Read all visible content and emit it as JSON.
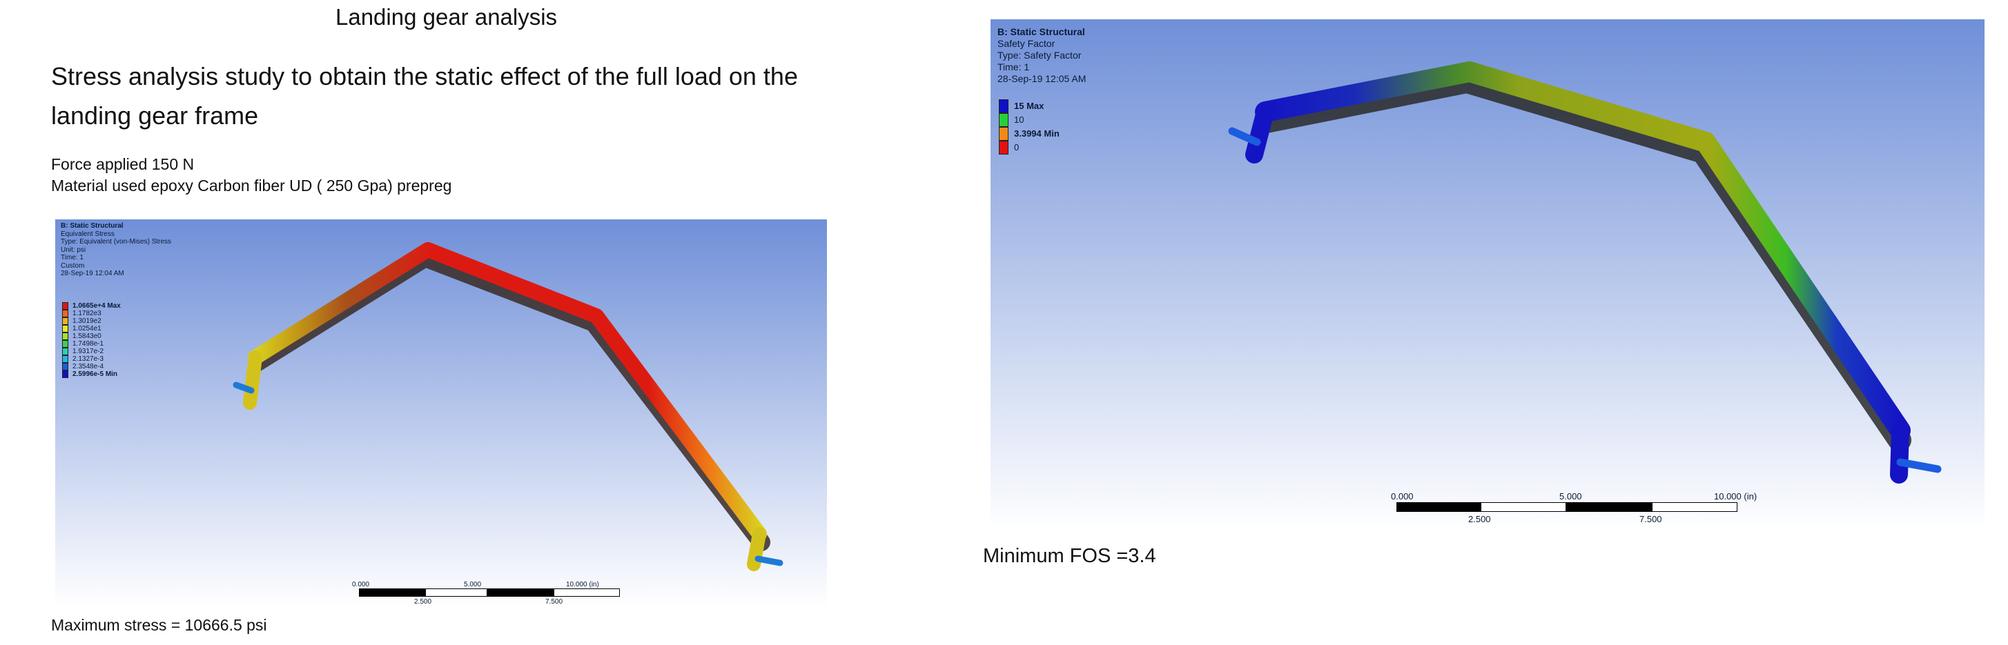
{
  "slide": {
    "title": "Landing gear analysis",
    "heading_line1": "Stress analysis study to obtain the static effect of the full load on the",
    "heading_line2": "landing gear frame",
    "force_text": "Force applied 150 N",
    "material_text": "Material used epoxy Carbon fiber UD ( 250 Gpa) prepreg",
    "max_stress_text": "Maximum stress = 10666.5 psi",
    "min_fos_text": "Minimum FOS =3.4"
  },
  "stress_view": {
    "info": [
      "B: Static Structural",
      "Equivalent Stress",
      "Type: Equivalent (von-Mises) Stress",
      "Unit: psi",
      "Time: 1",
      "Custom",
      "28-Sep-19 12:04 AM"
    ],
    "legend": [
      {
        "label": "1.0665e+4 Max",
        "color": "#e0141a",
        "bold": true
      },
      {
        "label": "1.1782e3",
        "color": "#ee6a1a"
      },
      {
        "label": "1.3019e2",
        "color": "#f2b21c"
      },
      {
        "label": "1.0254e1",
        "color": "#e8e82a"
      },
      {
        "label": "1.5843e0",
        "color": "#a6e22c"
      },
      {
        "label": "1.7498e-1",
        "color": "#3fd04a"
      },
      {
        "label": "1.9317e-2",
        "color": "#2ad0b0"
      },
      {
        "label": "2.1327e-3",
        "color": "#25b6e6"
      },
      {
        "label": "2.3548e-4",
        "color": "#1c5ce0"
      },
      {
        "label": "2.5996e-5 Min",
        "color": "#1010c8",
        "bold": true
      }
    ],
    "scale": {
      "top_labels": [
        "0.000",
        "5.000",
        "10.000 (in)"
      ],
      "bottom_labels": [
        "2.500",
        "7.500"
      ]
    }
  },
  "fos_view": {
    "info": [
      "B: Static Structural",
      "Safety Factor",
      "Type: Safety Factor",
      "Time: 1",
      "28-Sep-19 12:05 AM"
    ],
    "legend": [
      {
        "label": "15 Max",
        "color": "#1010c8",
        "bold": true
      },
      {
        "label": "10",
        "color": "#27d03a"
      },
      {
        "label": "3.3994 Min",
        "color": "#ee8a1a",
        "bold": true
      },
      {
        "label": "0",
        "color": "#e01414"
      }
    ],
    "scale": {
      "top_labels": [
        "0.000",
        "5.000",
        "10.000 (in)"
      ],
      "bottom_labels": [
        "2.500",
        "7.500"
      ]
    }
  },
  "colors": {
    "viewport_top": "#6f8fd8",
    "viewport_bottom": "#ffffff",
    "stress_high": "#dd1a12",
    "stress_mid": "#ee7a16",
    "stress_low": "#d9d020",
    "fos_low": "#8da21a",
    "fos_green": "#32c61e",
    "fos_blue": "#1414c4"
  }
}
